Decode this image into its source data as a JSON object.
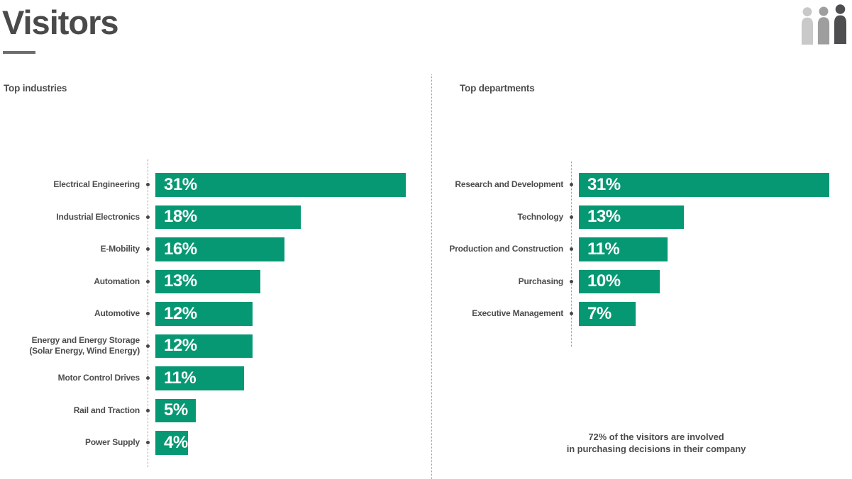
{
  "page": {
    "title": "Visitors"
  },
  "colors": {
    "bar_green": "#059873",
    "text_dark": "#4a4a4a",
    "text_label": "#4d4d4d",
    "axis_gray": "#9a9a9a",
    "dot_gray": "#474747",
    "underline_gray": "#6e6e6e",
    "icon_light": "#c9c9c9",
    "icon_medium": "#9e9e9e",
    "icon_dark": "#4e4e50"
  },
  "chart_data": [
    {
      "type": "bar",
      "orientation": "horizontal",
      "title": "Top industries",
      "value_suffix": "%",
      "categories": [
        "Electrical Engineering",
        "Industrial Electronics",
        "E-Mobility",
        "Automation",
        "Automotive",
        "Energy and Energy Storage\n(Solar Energy, Wind Energy)",
        "Motor Control Drives",
        "Rail and Traction",
        "Power Supply"
      ],
      "values": [
        31,
        18,
        16,
        13,
        12,
        12,
        11,
        5,
        4
      ],
      "labels": [
        "31%",
        "18%",
        "16%",
        "13%",
        "12%",
        "12%",
        "11%",
        "5%",
        "4%"
      ],
      "xlim": [
        0,
        31
      ],
      "grid": false,
      "legend": "none"
    },
    {
      "type": "bar",
      "orientation": "horizontal",
      "title": "Top departments",
      "value_suffix": "%",
      "categories": [
        "Research and Development",
        "Technology",
        "Production and Construction",
        "Purchasing",
        "Executive Management"
      ],
      "values": [
        31,
        13,
        11,
        10,
        7
      ],
      "labels": [
        "31%",
        "13%",
        "11%",
        "10%",
        "7%"
      ],
      "xlim": [
        0,
        31
      ],
      "grid": false,
      "legend": "none"
    }
  ],
  "footnote": {
    "line1": "72% of the visitors are involved",
    "line2": "in purchasing decisions in their company"
  },
  "header_icon": {
    "name": "people-group-icon",
    "figures": 3
  }
}
